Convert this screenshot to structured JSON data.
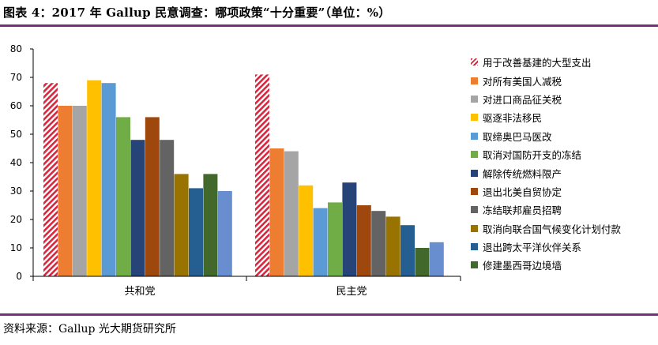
{
  "title": "图表 4：2017 年 Gallup 民意调查：哪项政策“十分重要”（单位：%）",
  "source": "资料来源：Gallup  光大期货研究所",
  "chart_data": {
    "type": "bar",
    "categories": [
      "共和党",
      "民主党"
    ],
    "ylim": [
      0,
      80
    ],
    "yticks": [
      "0",
      "10",
      "20",
      "30",
      "40",
      "50",
      "60",
      "70",
      "80"
    ],
    "legend_position": "right",
    "grid": false,
    "series": [
      {
        "name": "用于改善基建的大型支出",
        "values": [
          68,
          71
        ],
        "color": "#d7263d",
        "pattern": "hatch"
      },
      {
        "name": "对所有美国人减税",
        "values": [
          60,
          45
        ],
        "color": "#ed7d31"
      },
      {
        "name": "对进口商品征关税",
        "values": [
          60,
          44
        ],
        "color": "#a5a5a5"
      },
      {
        "name": "驱逐非法移民",
        "values": [
          69,
          32
        ],
        "color": "#ffc000"
      },
      {
        "name": "取缔奥巴马医改",
        "values": [
          68,
          24
        ],
        "color": "#5b9bd5"
      },
      {
        "name": "取消对国防开支的冻结",
        "values": [
          56,
          26
        ],
        "color": "#70ad47"
      },
      {
        "name": "解除传统燃料限产",
        "values": [
          48,
          33
        ],
        "color": "#264478"
      },
      {
        "name": "退出北美自贸协定",
        "values": [
          56,
          25
        ],
        "color": "#9e480e"
      },
      {
        "name": "冻结联邦雇员招聘",
        "values": [
          48,
          23
        ],
        "color": "#636363"
      },
      {
        "name": "取消向联合国气候变化计划付款",
        "values": [
          36,
          21
        ],
        "color": "#997300"
      },
      {
        "name": "退出跨太平洋伙伴关系",
        "values": [
          31,
          18
        ],
        "color": "#255e91"
      },
      {
        "name": "修建墨西哥边境墙",
        "values": [
          36,
          10
        ],
        "color": "#43682b"
      }
    ],
    "extra_bar": {
      "category": "共和党",
      "value": 30,
      "color": "#698ed0"
    },
    "extra_bar_2": {
      "category": "民主党",
      "value": 12,
      "color": "#698ed0"
    }
  }
}
